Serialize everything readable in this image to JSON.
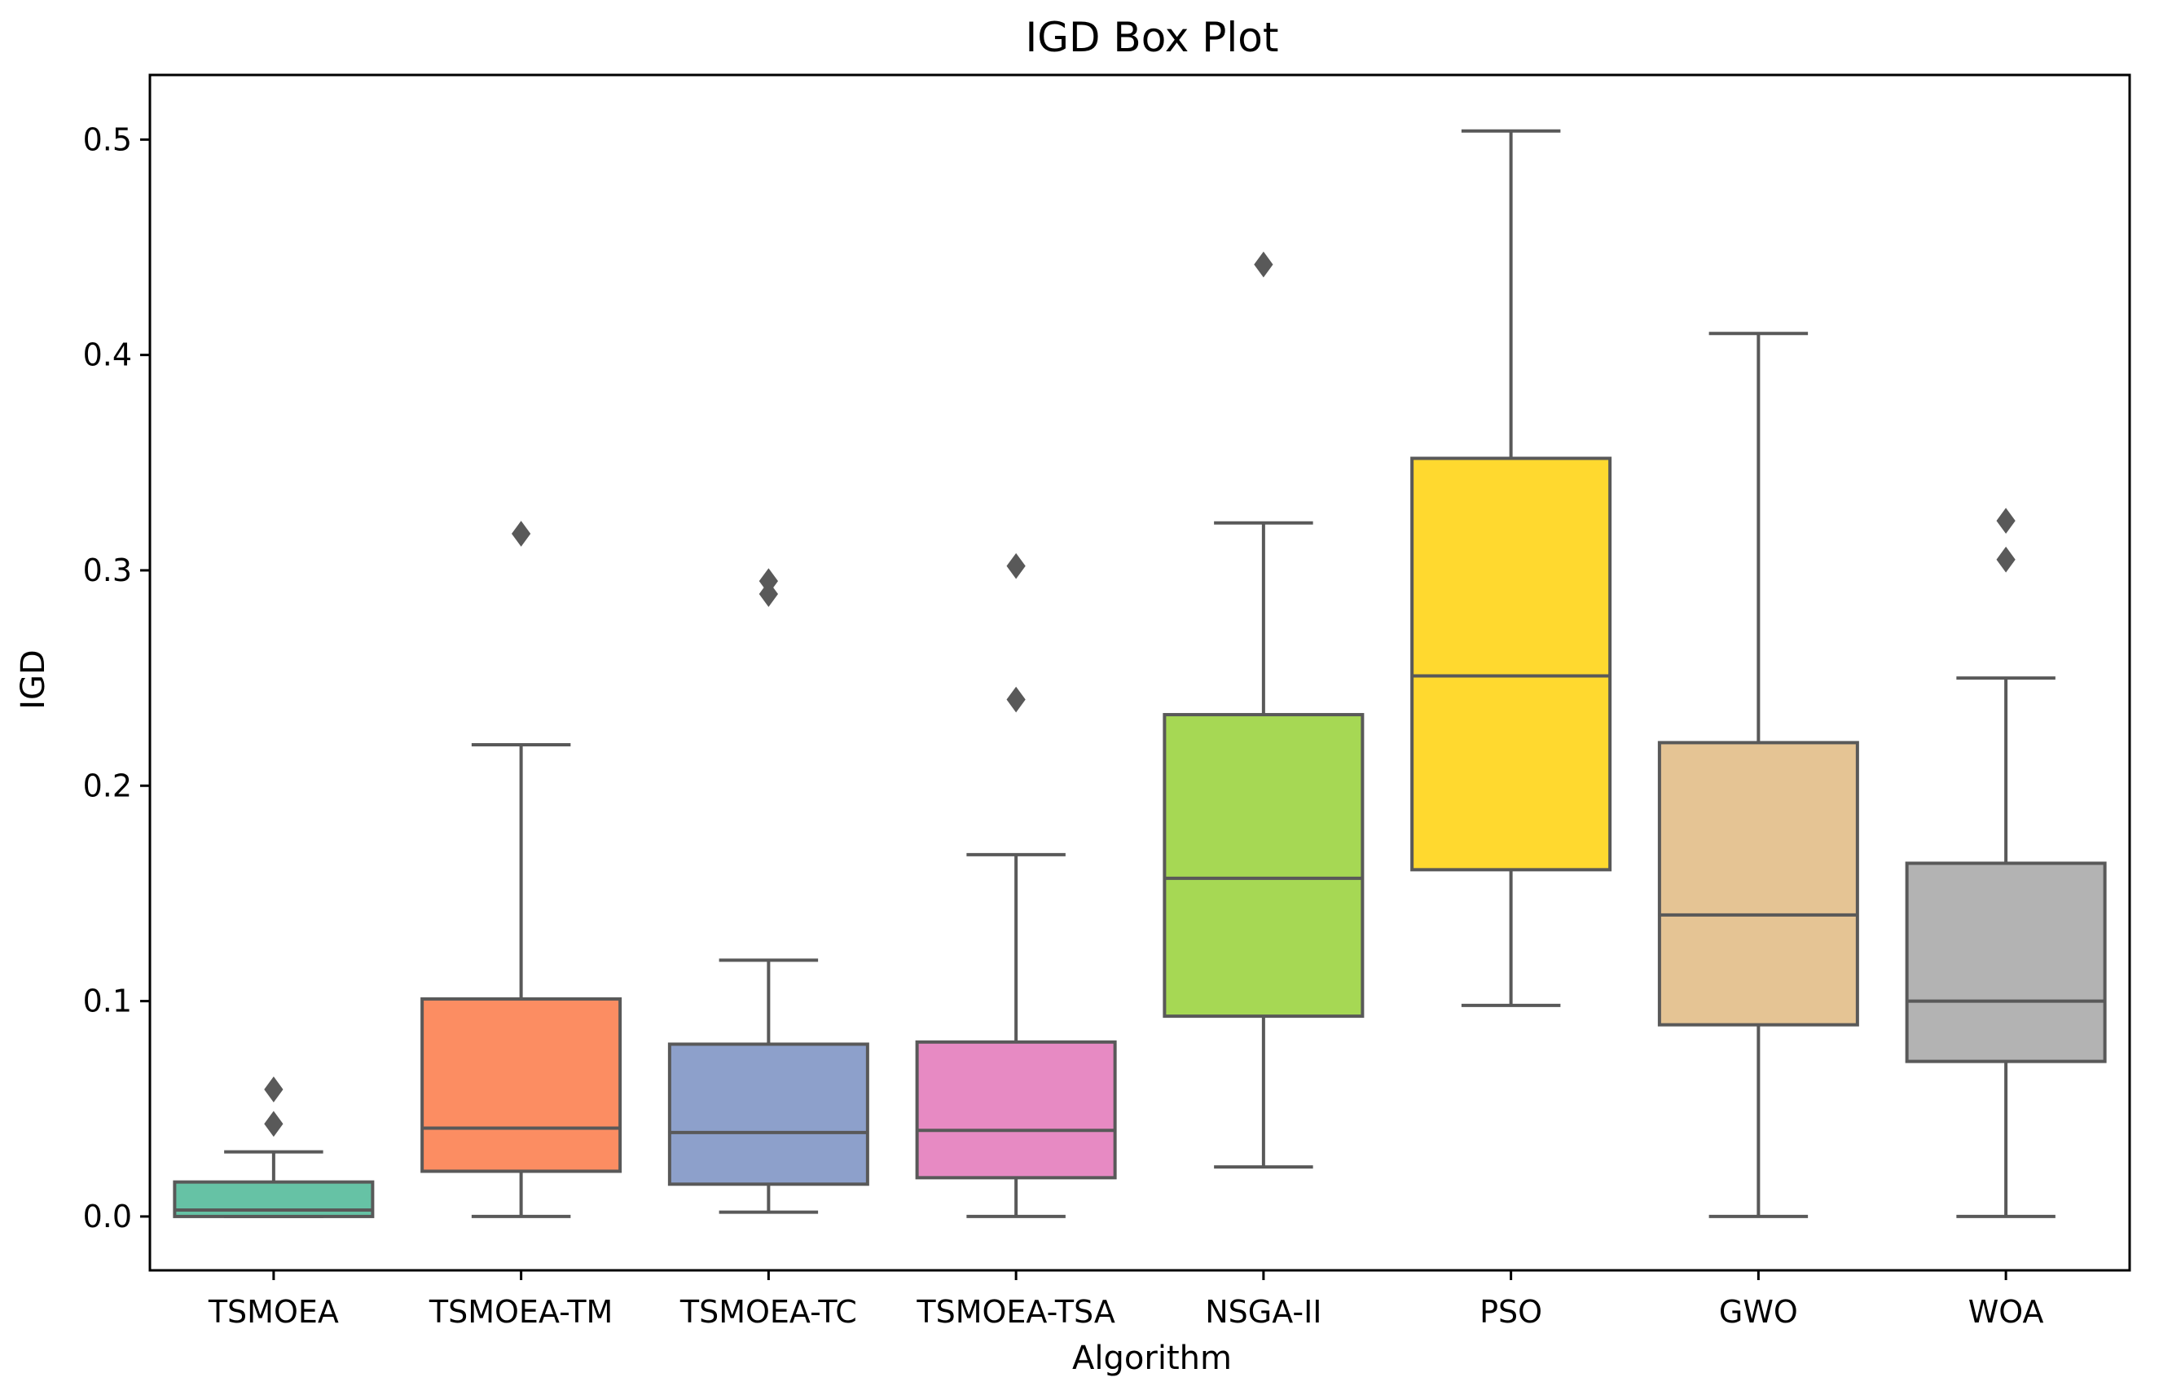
{
  "chart_data": {
    "type": "box",
    "title": "IGD Box Plot",
    "xlabel": "Algorithm",
    "ylabel": "IGD",
    "ylim": [
      -0.025,
      0.53
    ],
    "yticks": [
      0.0,
      0.1,
      0.2,
      0.3,
      0.4,
      0.5
    ],
    "ytick_labels": [
      "0.0",
      "0.1",
      "0.2",
      "0.3",
      "0.4",
      "0.5"
    ],
    "grid": false,
    "categories": [
      "TSMOEA",
      "TSMOEA-TM",
      "TSMOEA-TC",
      "TSMOEA-TSA",
      "NSGA-II",
      "PSO",
      "GWO",
      "WOA"
    ],
    "boxes": [
      {
        "name": "TSMOEA",
        "color": "#66c2a5",
        "whisker_low": 0.0,
        "q1": 0.0,
        "median": 0.003,
        "q3": 0.016,
        "whisker_high": 0.03,
        "outliers": [
          0.043,
          0.059
        ]
      },
      {
        "name": "TSMOEA-TM",
        "color": "#fc8d62",
        "whisker_low": 0.0,
        "q1": 0.021,
        "median": 0.041,
        "q3": 0.101,
        "whisker_high": 0.219,
        "outliers": [
          0.317
        ]
      },
      {
        "name": "TSMOEA-TC",
        "color": "#8da0cb",
        "whisker_low": 0.002,
        "q1": 0.015,
        "median": 0.039,
        "q3": 0.08,
        "whisker_high": 0.119,
        "outliers": [
          0.289,
          0.295
        ]
      },
      {
        "name": "TSMOEA-TSA",
        "color": "#e78ac3",
        "whisker_low": 0.0,
        "q1": 0.018,
        "median": 0.04,
        "q3": 0.081,
        "whisker_high": 0.168,
        "outliers": [
          0.24,
          0.302
        ]
      },
      {
        "name": "NSGA-II",
        "color": "#a6d854",
        "whisker_low": 0.023,
        "q1": 0.093,
        "median": 0.157,
        "q3": 0.233,
        "whisker_high": 0.322,
        "outliers": [
          0.442
        ]
      },
      {
        "name": "PSO",
        "color": "#ffd92f",
        "whisker_low": 0.098,
        "q1": 0.161,
        "median": 0.251,
        "q3": 0.352,
        "whisker_high": 0.504,
        "outliers": []
      },
      {
        "name": "GWO",
        "color": "#e5c494",
        "whisker_low": 0.0,
        "q1": 0.089,
        "median": 0.14,
        "q3": 0.22,
        "whisker_high": 0.41,
        "outliers": []
      },
      {
        "name": "WOA",
        "color": "#b3b3b3",
        "whisker_low": 0.0,
        "q1": 0.072,
        "median": 0.1,
        "q3": 0.164,
        "whisker_high": 0.25,
        "outliers": [
          0.305,
          0.323
        ]
      }
    ]
  }
}
